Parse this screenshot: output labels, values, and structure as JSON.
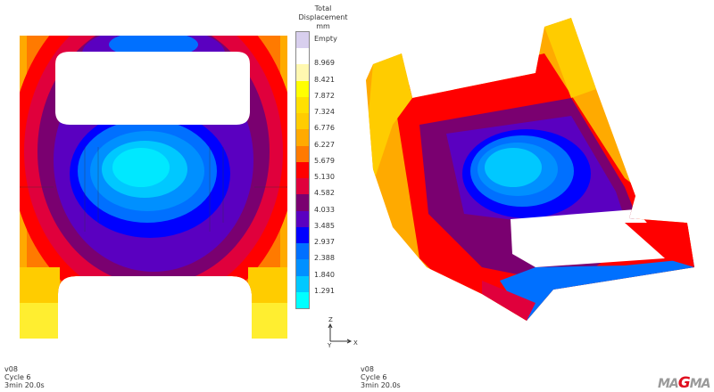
{
  "legend": {
    "title_lines": [
      "Total",
      "Displacement",
      "mm"
    ],
    "bands": [
      "#d8cfee",
      "#ffffff",
      "#fff8b0",
      "#ffff00",
      "#ffe000",
      "#ffcc00",
      "#ffaa00",
      "#ff7a00",
      "#ff0000",
      "#e0003c",
      "#7a0070",
      "#5a00c0",
      "#0000ff",
      "#0070ff",
      "#0090ff",
      "#00c8ff",
      "#00ffff"
    ],
    "labels": [
      "Empty",
      "8.969",
      "8.421",
      "7.872",
      "7.324",
      "6.776",
      "6.227",
      "5.679",
      "5.130",
      "4.582",
      "4.033",
      "3.485",
      "2.937",
      "2.388",
      "1.840",
      "1.291"
    ]
  },
  "axes": {
    "z": "Z",
    "y": "Y",
    "x": "X"
  },
  "views": [
    {
      "version": "v08",
      "cycle": "Cycle 6",
      "time": "3min 20.0s"
    },
    {
      "version": "v08",
      "cycle": "Cycle 6",
      "time": "3min 20.0s"
    }
  ],
  "logo": {
    "prefix": "MA",
    "g": "G",
    "suffix": "MA"
  }
}
